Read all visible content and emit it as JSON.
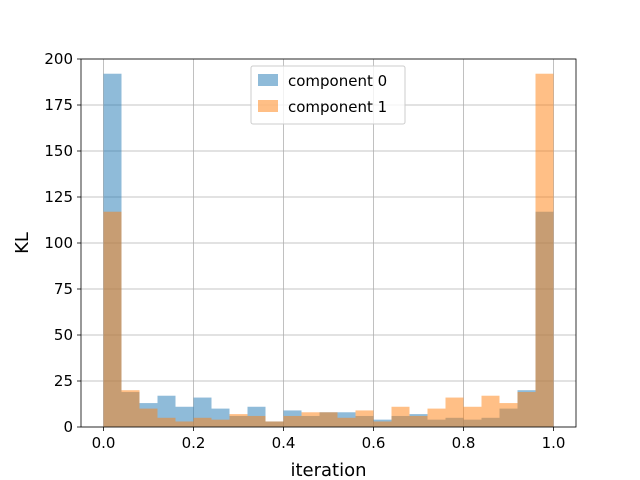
{
  "chart_data": {
    "type": "bar",
    "subtype": "overlapping-histogram",
    "xlabel": "iteration",
    "ylabel": "KL",
    "xlim": [
      -0.05,
      1.05
    ],
    "ylim": [
      0,
      200
    ],
    "xticks": [
      "0.0",
      "0.2",
      "0.4",
      "0.6",
      "0.8",
      "1.0"
    ],
    "yticks": [
      "0",
      "25",
      "50",
      "75",
      "100",
      "125",
      "150",
      "175",
      "200"
    ],
    "grid": true,
    "legend_position": "top-center",
    "bin_edges": [
      0.0,
      0.04,
      0.08,
      0.12,
      0.16,
      0.2,
      0.24,
      0.28,
      0.32,
      0.36,
      0.4,
      0.44,
      0.48,
      0.52,
      0.56,
      0.6,
      0.64,
      0.68,
      0.72,
      0.76,
      0.8,
      0.84,
      0.88,
      0.92,
      0.96,
      1.0
    ],
    "series": [
      {
        "name": "component 0",
        "color": "#1f77b4",
        "values": [
          192,
          19,
          13,
          17,
          11,
          16,
          10,
          6,
          11,
          3,
          9,
          6,
          8,
          8,
          6,
          4,
          6,
          7,
          4,
          5,
          4,
          5,
          10,
          20,
          117
        ]
      },
      {
        "name": "component 1",
        "color": "#ff7f0e",
        "values": [
          117,
          20,
          10,
          5,
          3,
          5,
          4,
          7,
          6,
          3,
          6,
          8,
          8,
          5,
          9,
          3,
          11,
          6,
          10,
          16,
          11,
          17,
          13,
          19,
          192
        ]
      }
    ],
    "opacity": 0.5
  }
}
